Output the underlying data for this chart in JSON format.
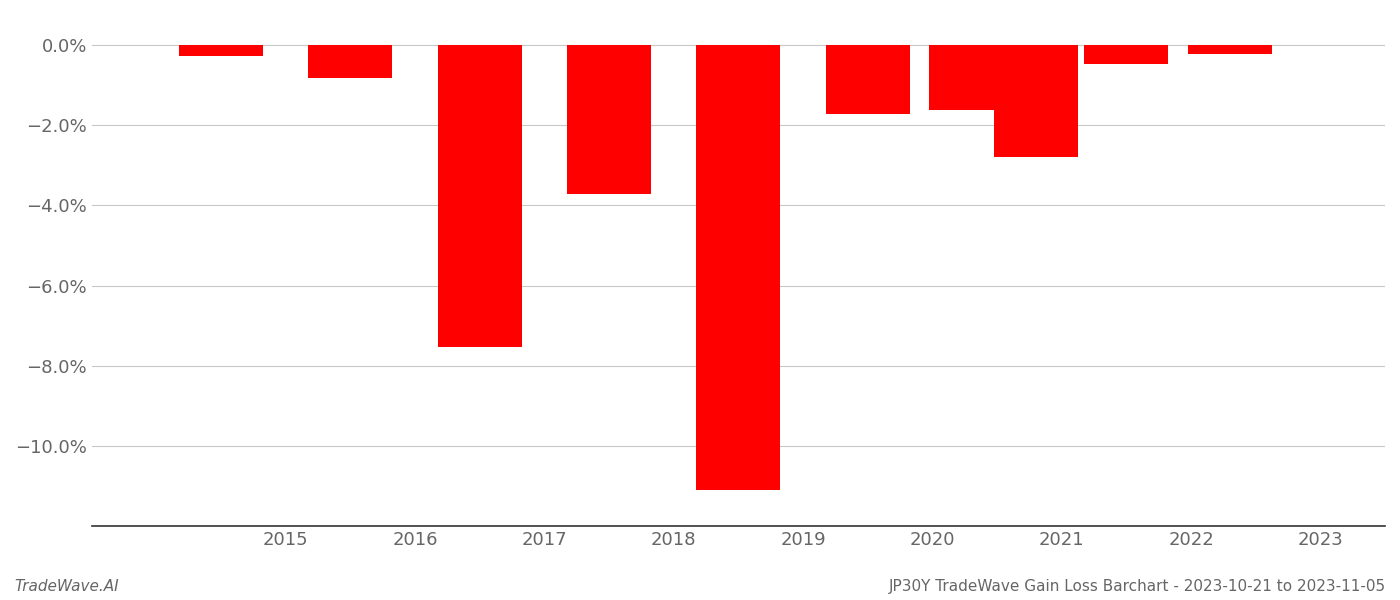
{
  "years": [
    2014.5,
    2015.5,
    2016.5,
    2017.5,
    2018.5,
    2019.5,
    2020.3,
    2020.8,
    2021.5,
    2022.3
  ],
  "values": [
    -0.28,
    -0.82,
    -7.52,
    -3.72,
    -11.1,
    -1.72,
    -1.62,
    -2.8,
    -0.48,
    -0.22
  ],
  "bar_color": "#ff0000",
  "ylim": [
    -12.0,
    0.6
  ],
  "yticks": [
    0.0,
    -2.0,
    -4.0,
    -6.0,
    -8.0,
    -10.0
  ],
  "xlim": [
    2013.5,
    2023.5
  ],
  "xticks": [
    2015,
    2016,
    2017,
    2018,
    2019,
    2020,
    2021,
    2022,
    2023
  ],
  "bar_width": 0.65,
  "grid_color": "#c8c8c8",
  "text_color": "#666666",
  "footer_left": "TradeWave.AI",
  "footer_right": "JP30Y TradeWave Gain Loss Barchart - 2023-10-21 to 2023-11-05",
  "background_color": "#ffffff"
}
